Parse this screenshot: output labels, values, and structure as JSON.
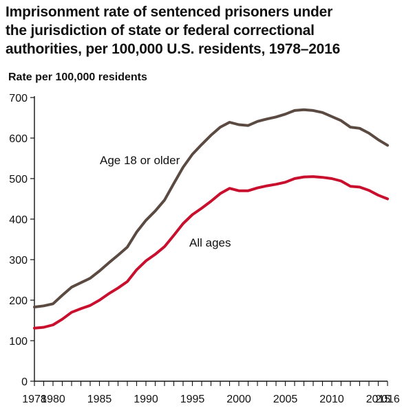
{
  "chart_data": {
    "type": "line",
    "title_lines": [
      "Imprisonment rate of sentenced prisoners under",
      "the jurisdiction of state or federal correctional",
      "authorities, per 100,000 U.S. residents, 1978–2016"
    ],
    "ylabel": "Rate per 100,000 residents",
    "xlabel": "",
    "xlim": [
      1978,
      2016
    ],
    "ylim": [
      0,
      700
    ],
    "x_ticks": [
      1978,
      1980,
      1985,
      1990,
      1995,
      2000,
      2005,
      2010,
      2015,
      2016
    ],
    "x_tick_labels": [
      "1978",
      "1980",
      "1985",
      "1990",
      "1995",
      "2000",
      "2005",
      "2010",
      "2015",
      "2016"
    ],
    "y_ticks": [
      0,
      100,
      200,
      300,
      400,
      500,
      600,
      700
    ],
    "y_tick_labels": [
      "0",
      "100",
      "200",
      "300",
      "400",
      "500",
      "600",
      "700"
    ],
    "grid": false,
    "x": [
      1978,
      1979,
      1980,
      1981,
      1982,
      1983,
      1984,
      1985,
      1986,
      1987,
      1988,
      1989,
      1990,
      1991,
      1992,
      1993,
      1994,
      1995,
      1996,
      1997,
      1998,
      1999,
      2000,
      2001,
      2002,
      2003,
      2004,
      2005,
      2006,
      2007,
      2008,
      2009,
      2010,
      2011,
      2012,
      2013,
      2014,
      2015,
      2016
    ],
    "series": [
      {
        "name": "Age 18 or older",
        "label": "Age 18 or older",
        "color": "#5a4a42",
        "values": [
          183,
          186,
          191,
          212,
          232,
          243,
          254,
          272,
          292,
          311,
          331,
          368,
          397,
          420,
          447,
          488,
          528,
          560,
          584,
          607,
          627,
          639,
          633,
          631,
          641,
          647,
          652,
          659,
          668,
          670,
          668,
          663,
          653,
          643,
          627,
          624,
          612,
          596,
          582
        ]
      },
      {
        "name": "All ages",
        "label": "All ages",
        "color": "#c8102e",
        "values": [
          131,
          133,
          139,
          153,
          170,
          179,
          187,
          200,
          216,
          230,
          246,
          275,
          297,
          313,
          332,
          360,
          389,
          411,
          427,
          444,
          463,
          476,
          470,
          470,
          477,
          482,
          486,
          491,
          500,
          504,
          505,
          503,
          500,
          494,
          481,
          479,
          471,
          459,
          450
        ]
      }
    ]
  }
}
